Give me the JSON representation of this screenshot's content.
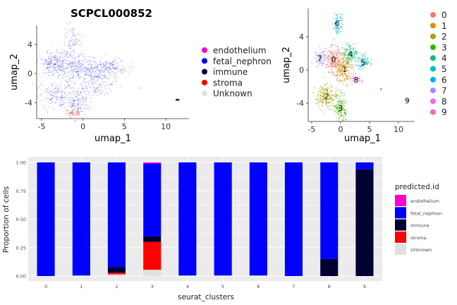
{
  "chart_data": [
    {
      "type": "scatter",
      "title": "SCPCL000852",
      "xlabel": "umap_1",
      "ylabel": "umap_2",
      "xlim": [
        -5.6,
        12.8
      ],
      "ylim": [
        -6.2,
        6.6
      ],
      "xticks": [
        -5,
        0,
        5,
        10
      ],
      "yticks": [
        -4,
        0,
        4
      ],
      "legend": {
        "position": "right",
        "entries": [
          {
            "name": "endothelium",
            "color": "#ff00cc"
          },
          {
            "name": "fetal_nephron",
            "color": "#0000ff"
          },
          {
            "name": "immune",
            "color": "#000033"
          },
          {
            "name": "stroma",
            "color": "#ff0000"
          },
          {
            "name": "Unknown",
            "color": "#e0e0e0"
          }
        ]
      }
    },
    {
      "type": "scatter",
      "title": "",
      "xlabel": "umap_1",
      "ylabel": "umap_2",
      "xlim": [
        -5.6,
        12.8
      ],
      "ylim": [
        -6.2,
        7.4
      ],
      "xticks": [
        -5,
        0,
        5,
        10
      ],
      "yticks": [
        -4,
        0,
        4
      ],
      "cluster_labels": [
        {
          "label": "0",
          "x": -1.2,
          "y": 1.3
        },
        {
          "label": "1",
          "x": 0.7,
          "y": 0.1
        },
        {
          "label": "2",
          "x": -2.4,
          "y": -3.2
        },
        {
          "label": "3",
          "x": 0.0,
          "y": -4.6
        },
        {
          "label": "4",
          "x": 1.7,
          "y": 1.9
        },
        {
          "label": "5",
          "x": 3.9,
          "y": 0.9
        },
        {
          "label": "6",
          "x": -0.6,
          "y": 5.6
        },
        {
          "label": "7",
          "x": -3.6,
          "y": 1.4
        },
        {
          "label": "8",
          "x": 2.7,
          "y": -1.2
        },
        {
          "label": "9",
          "x": 11.5,
          "y": -3.7
        }
      ],
      "legend": {
        "position": "right",
        "entries": [
          {
            "name": "0",
            "color": "#f8766d"
          },
          {
            "name": "1",
            "color": "#d89000"
          },
          {
            "name": "2",
            "color": "#a3a500"
          },
          {
            "name": "3",
            "color": "#39b600"
          },
          {
            "name": "4",
            "color": "#00bf7d"
          },
          {
            "name": "5",
            "color": "#00bfc4"
          },
          {
            "name": "6",
            "color": "#00b0f6"
          },
          {
            "name": "7",
            "color": "#9590ff"
          },
          {
            "name": "8",
            "color": "#e76bf3"
          },
          {
            "name": "9",
            "color": "#ff62bc"
          }
        ]
      }
    },
    {
      "type": "bar",
      "stacked": true,
      "xlabel": "seurat_clusters",
      "ylabel": "Proportion of cells",
      "ylim": [
        0,
        1
      ],
      "yticks": [
        "0.00",
        "0.25",
        "0.50",
        "0.75",
        "1.00"
      ],
      "categories": [
        "0",
        "1",
        "2",
        "3",
        "4",
        "5",
        "6",
        "7",
        "8",
        "9"
      ],
      "legend_title": "predicted.id",
      "series": [
        {
          "name": "endothelium",
          "color": "#ff00cc",
          "values": [
            0,
            0,
            0,
            0.01,
            0,
            0,
            0,
            0,
            0,
            0
          ]
        },
        {
          "name": "fetal_nephron",
          "color": "#0000ff",
          "values": [
            1.0,
            0.995,
            0.92,
            0.64,
            0.995,
            0.995,
            0.995,
            1.0,
            0.85,
            0.06
          ]
        },
        {
          "name": "immune",
          "color": "#000033",
          "values": [
            0,
            0,
            0.05,
            0.05,
            0,
            0,
            0,
            0,
            0.15,
            0.94
          ]
        },
        {
          "name": "stroma",
          "color": "#ff0000",
          "values": [
            0,
            0,
            0.015,
            0.245,
            0,
            0,
            0,
            0,
            0,
            0
          ]
        },
        {
          "name": "Unknown",
          "color": "#e0e0e0",
          "values": [
            0,
            0.005,
            0.015,
            0.055,
            0.005,
            0.005,
            0.005,
            0,
            0,
            0
          ]
        }
      ]
    }
  ]
}
